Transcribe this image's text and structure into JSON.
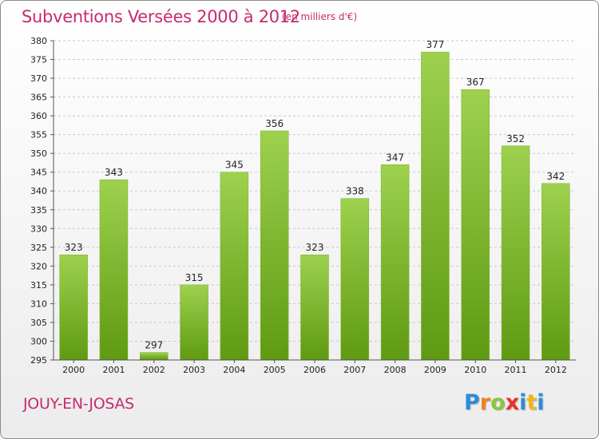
{
  "header": {
    "title": "Subventions Versées 2000 à 2012",
    "unit_note": "(en milliers d'€)"
  },
  "footer": {
    "place": "JOUY-EN-JOSAS",
    "logo_letters": [
      "P",
      "r",
      "o",
      "x",
      "i",
      "t",
      "i"
    ],
    "logo_colors": [
      "#2a8ed6",
      "#f0831c",
      "#8cc43a",
      "#e8322a",
      "#2a8ed6",
      "#f0b41c",
      "#2a8ed6"
    ]
  },
  "colors": {
    "title": "#c62a6e",
    "bar_top": "#9dd14e",
    "bar_bottom": "#5f9a12",
    "grid": "#c8c8c8",
    "axis": "#555555"
  },
  "chart_data": {
    "type": "bar",
    "categories": [
      "2000",
      "2001",
      "2002",
      "2003",
      "2004",
      "2005",
      "2006",
      "2007",
      "2008",
      "2009",
      "2010",
      "2011",
      "2012"
    ],
    "values": [
      323,
      343,
      297,
      315,
      345,
      356,
      323,
      338,
      347,
      377,
      367,
      352,
      342
    ],
    "ylim": [
      295,
      380
    ],
    "yticks": [
      295,
      300,
      305,
      310,
      315,
      320,
      325,
      330,
      335,
      340,
      345,
      350,
      355,
      360,
      365,
      370,
      375,
      380
    ],
    "grid": true
  }
}
